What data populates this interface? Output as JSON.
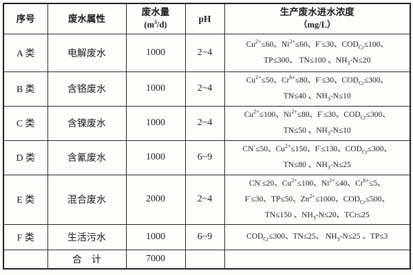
{
  "table": {
    "headers": {
      "serial": "序号",
      "property": "废水属性",
      "volume_line1": "废水量",
      "volume_line2": "(m^3^/d)",
      "ph": "pH",
      "concentration_line1": "生产废水进水浓度",
      "concentration_line2": "（mg/L）"
    },
    "rows": [
      {
        "serial": "A 类",
        "property": "电解废水",
        "volume": "1000",
        "ph": "2~4",
        "conc": [
          "Cu^2+^≤60、Ni^2+^≤60、F^-^≤30、COD{Cr}≤100、",
          "TP≤300、 TN≤100 、NH{3}-N≤20"
        ]
      },
      {
        "serial": "B 类",
        "property": "含铬废水",
        "volume": "1000",
        "ph": "2~4",
        "conc": [
          "Cu^2+^≤50、Cr^6+^≤80、F^-^≤30、COD{Cr}≤300、",
          "TN≤40 、NH{3}-N≤10"
        ]
      },
      {
        "serial": "C 类",
        "property": "含镍废水",
        "volume": "1000",
        "ph": "2~4",
        "conc": [
          "Cu^2+^≤100、Ni^2+^≤80、F^-^≤30、COD{Cr}≤300、",
          "TN≤50 、NH{3}-N≤10"
        ]
      },
      {
        "serial": "D 类",
        "property": "含氰废水",
        "volume": "1000",
        "ph": "6~9",
        "conc": [
          "CN^-^≤50、Cu^2+^≤150、F^-^≤130、COD{Cr}≤300、",
          "TN≤80 、NH{3}-N≤25"
        ]
      },
      {
        "serial": "E 类",
        "property": "混合废水",
        "volume": "2000",
        "ph": "2~4",
        "conc": [
          "CN^-^≤20、Cu^2+^≤100、Ni^2+^≤40、Cr^6+^≤5、",
          "F^-^≤30、TP≤50、Zn^2+^≤1000、COD{Cr}≤500、",
          "TN≤150 、NH{3}-N≤20、TCr≤25"
        ]
      },
      {
        "serial": "F 类",
        "property": "生活污水",
        "volume": "1000",
        "ph": "6~9",
        "conc": [
          "COD{Cr}≤300、TN≤25、 NH{3}-N≤25 、TP≤3"
        ]
      },
      {
        "serial": "",
        "property": "合　计",
        "volume": "7000",
        "ph": "",
        "conc": []
      }
    ]
  }
}
